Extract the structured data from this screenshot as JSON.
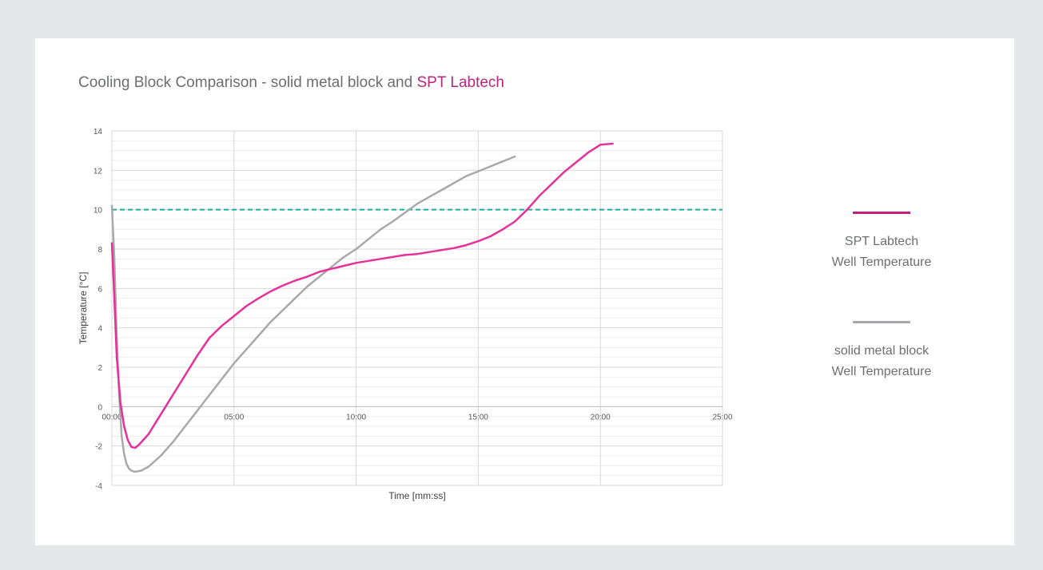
{
  "title": {
    "prefix": "Cooling Block Comparison - solid metal block and ",
    "accent": "SPT Labtech"
  },
  "legend": [
    {
      "line1": "SPT Labtech",
      "line2": "Well Temperature",
      "color": "#c51f7f"
    },
    {
      "line1": "solid metal block",
      "line2": "Well Temperature",
      "color": "#a7a9ac"
    }
  ],
  "chart_data": {
    "type": "line",
    "xlabel": "Time [mm:ss]",
    "ylabel": "Temperature [°C]",
    "xlim": [
      0,
      25
    ],
    "ylim": [
      -4,
      14
    ],
    "x_ticks": [
      "00:00",
      "05:00",
      "10:00",
      "15:00",
      "20:00",
      "25:00"
    ],
    "y_ticks": [
      "-4",
      "-2",
      "0",
      "2",
      "4",
      "6",
      "8",
      "10",
      "12",
      "14"
    ],
    "grid": true,
    "legend_position": "right",
    "reference_line": {
      "y": 10,
      "color": "#1aaea5",
      "style": "dashed"
    },
    "series": [
      {
        "name": "SPT Labtech Well Temperature",
        "color": "#e6309a",
        "x": [
          0.0,
          0.1,
          0.2,
          0.35,
          0.5,
          0.65,
          0.8,
          0.95,
          1.1,
          1.5,
          2.0,
          2.5,
          3.0,
          3.5,
          4.0,
          4.5,
          5.0,
          5.5,
          6.0,
          6.5,
          7.0,
          7.5,
          8.0,
          8.5,
          9.0,
          9.5,
          10.0,
          10.5,
          11.0,
          11.5,
          12.0,
          12.5,
          13.0,
          13.5,
          14.0,
          14.5,
          15.0,
          15.5,
          16.0,
          16.5,
          17.0,
          17.5,
          18.0,
          18.5,
          19.0,
          19.5,
          20.0,
          20.5
        ],
        "y": [
          8.3,
          5.5,
          2.5,
          0.2,
          -1.0,
          -1.7,
          -2.05,
          -2.1,
          -1.95,
          -1.4,
          -0.4,
          0.6,
          1.6,
          2.6,
          3.5,
          4.1,
          4.6,
          5.1,
          5.5,
          5.85,
          6.15,
          6.4,
          6.6,
          6.85,
          7.0,
          7.15,
          7.3,
          7.4,
          7.5,
          7.6,
          7.7,
          7.75,
          7.85,
          7.95,
          8.05,
          8.2,
          8.4,
          8.65,
          9.0,
          9.4,
          10.0,
          10.7,
          11.3,
          11.9,
          12.4,
          12.9,
          13.3,
          13.35
        ]
      },
      {
        "name": "solid metal block Well Temperature",
        "color": "#a7a9ac",
        "x": [
          0.0,
          0.1,
          0.2,
          0.3,
          0.4,
          0.5,
          0.6,
          0.7,
          0.8,
          0.9,
          1.0,
          1.2,
          1.5,
          2.0,
          2.5,
          3.0,
          3.5,
          4.0,
          4.5,
          5.0,
          5.5,
          6.0,
          6.5,
          7.0,
          7.5,
          8.0,
          8.5,
          9.0,
          9.5,
          10.0,
          10.5,
          11.0,
          11.5,
          12.0,
          12.5,
          13.0,
          13.5,
          14.0,
          14.5,
          15.0,
          15.5,
          16.0,
          16.5
        ],
        "y": [
          10.2,
          7.5,
          3.5,
          0.5,
          -1.5,
          -2.4,
          -2.9,
          -3.15,
          -3.25,
          -3.3,
          -3.3,
          -3.25,
          -3.05,
          -2.5,
          -1.8,
          -1.0,
          -0.2,
          0.6,
          1.4,
          2.2,
          2.9,
          3.6,
          4.3,
          4.9,
          5.5,
          6.1,
          6.6,
          7.1,
          7.6,
          8.0,
          8.5,
          9.0,
          9.4,
          9.85,
          10.3,
          10.65,
          11.0,
          11.35,
          11.7,
          11.95,
          12.2,
          12.45,
          12.7
        ]
      }
    ]
  }
}
